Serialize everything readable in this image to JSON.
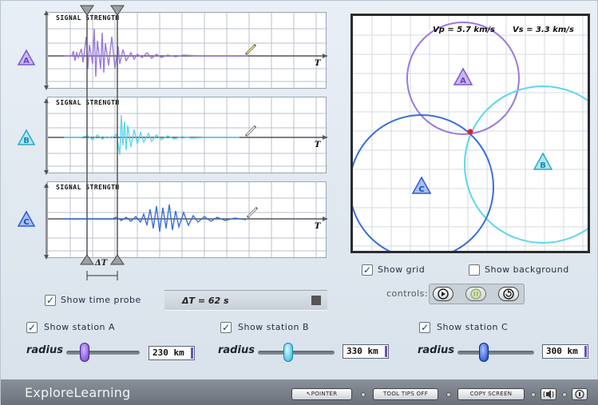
{
  "graphs": [
    {
      "station": "A",
      "title": "SIGNAL STRENGTH",
      "axis": "T",
      "color": "#9a7ae0"
    },
    {
      "station": "B",
      "title": "SIGNAL STRENGTH",
      "axis": "T",
      "color": "#5cd6ec"
    },
    {
      "station": "C",
      "title": "SIGNAL STRENGTH",
      "axis": "T",
      "color": "#3a6ee0"
    }
  ],
  "probe": {
    "delta_label": "ΔT",
    "readout": "ΔT = 62 s",
    "show_label": "Show time probe",
    "checked": true
  },
  "map": {
    "vp_label": "Vp = 5.7 km/s",
    "vs_label": "Vs = 3.3 km/s",
    "stations": [
      {
        "label": "A",
        "color": "#9a7ae0"
      },
      {
        "label": "B",
        "color": "#5cd6ec"
      },
      {
        "label": "C",
        "color": "#3a6ee0"
      }
    ],
    "show_grid_label": "Show grid",
    "show_grid": true,
    "show_background_label": "Show background",
    "show_background": false,
    "controls_label": "controls:"
  },
  "stations": [
    {
      "label": "Show station A",
      "checked": true,
      "radius_label": "radius",
      "radius_value": "230 km",
      "knob_color": "#8a60d8"
    },
    {
      "label": "Show station B",
      "checked": true,
      "radius_label": "radius",
      "radius_value": "330 km",
      "knob_color": "#40c8e8"
    },
    {
      "label": "Show station C",
      "checked": true,
      "radius_label": "radius",
      "radius_value": "300 km",
      "knob_color": "#2050d8"
    }
  ],
  "footer": {
    "brand": "ExploreLearning",
    "pointer": "↖POINTER",
    "tooltips": "TOOL TIPS OFF",
    "copy": "COPY SCREEN"
  }
}
